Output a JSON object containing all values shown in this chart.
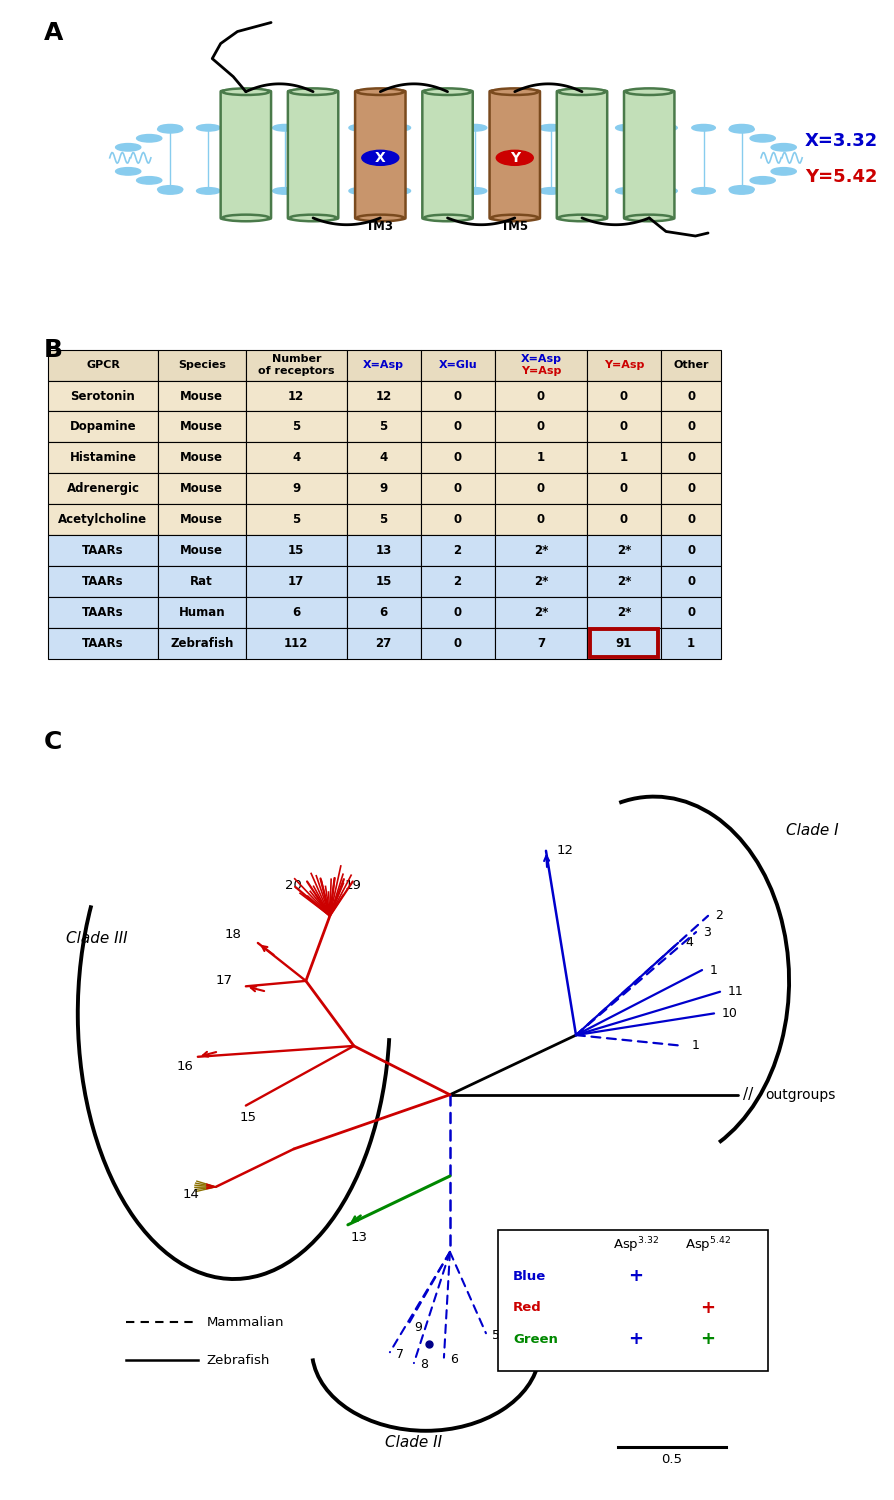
{
  "panel_A_label": "A",
  "panel_B_label": "B",
  "panel_C_label": "C",
  "x_label": "X=3.32",
  "y_label": "Y=5.42",
  "tm3_label": "TM3",
  "tm5_label": "TM5",
  "table_headers": [
    "GPCR",
    "Species",
    "Number\nof receptors",
    "X=Asp",
    "X=Glu",
    "X=Asp\nY=Asp",
    "Y=Asp",
    "Other"
  ],
  "table_header_colors": [
    "black",
    "black",
    "black",
    "#0000cc",
    "#0000cc",
    "multi",
    "#cc0000",
    "black"
  ],
  "table_rows": [
    [
      "Serotonin",
      "Mouse",
      "12",
      "12",
      "0",
      "0",
      "0",
      "0"
    ],
    [
      "Dopamine",
      "Mouse",
      "5",
      "5",
      "0",
      "0",
      "0",
      "0"
    ],
    [
      "Histamine",
      "Mouse",
      "4",
      "4",
      "0",
      "1",
      "1",
      "0"
    ],
    [
      "Adrenergic",
      "Mouse",
      "9",
      "9",
      "0",
      "0",
      "0",
      "0"
    ],
    [
      "Acetylcholine",
      "Mouse",
      "5",
      "5",
      "0",
      "0",
      "0",
      "0"
    ],
    [
      "TAARs",
      "Mouse",
      "15",
      "13",
      "2",
      "2*",
      "2*",
      "0"
    ],
    [
      "TAARs",
      "Rat",
      "17",
      "15",
      "2",
      "2*",
      "2*",
      "0"
    ],
    [
      "TAARs",
      "Human",
      "6",
      "6",
      "0",
      "2*",
      "2*",
      "0"
    ],
    [
      "TAARs",
      "Zebrafish",
      "112",
      "27",
      "0",
      "7",
      "91",
      "1"
    ]
  ],
  "row_bg_tan": "#f2e6cc",
  "row_bg_blue": "#cce0f5",
  "row_bg_header": "#e8dcc0",
  "highlighted_row": 8,
  "highlighted_col": 6,
  "highlight_color": "#aa0000",
  "blue_color": "#0000cc",
  "red_color": "#cc0000",
  "green_color": "#008800",
  "scale_bar": "0.5"
}
